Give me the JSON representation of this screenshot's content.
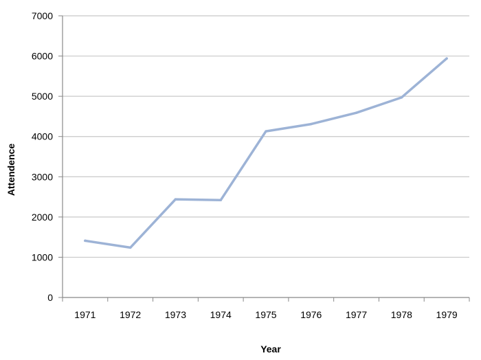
{
  "chart_data": {
    "type": "line",
    "title": "",
    "xlabel": "Year",
    "ylabel": "Attendence",
    "categories": [
      "1971",
      "1972",
      "1973",
      "1974",
      "1975",
      "1976",
      "1977",
      "1978",
      "1979"
    ],
    "series": [
      {
        "values": [
          1410,
          1240,
          2440,
          2420,
          4130,
          4310,
          4590,
          4970,
          5940
        ]
      }
    ],
    "ylim": [
      0,
      7000
    ],
    "yticks": [
      0,
      1000,
      2000,
      3000,
      4000,
      5000,
      6000,
      7000
    ],
    "grid": true,
    "legend": "none",
    "colors": {
      "line": "#9db3d6",
      "grid": "#c8c8c8",
      "axis": "#888888",
      "text": "#000000"
    }
  }
}
